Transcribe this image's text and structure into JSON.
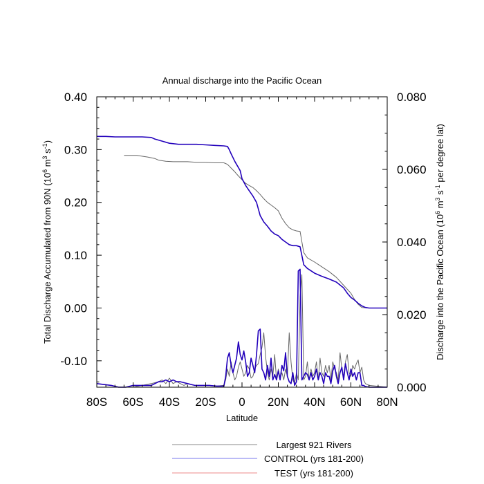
{
  "chart_data": {
    "type": "line",
    "title": "Annual discharge into the Pacific Ocean",
    "xlabel": "Latitude",
    "ylabel_left": {
      "prefix": "Total Discharge Accumulated from 90N (10",
      "sup1": "6",
      "mid": " m",
      "sup2": "3",
      "mid2": " s",
      "sup3": "-1",
      "suffix": ")"
    },
    "ylabel_right": {
      "prefix": "Discharge into the Pacific Ocean (10",
      "sup1": "6",
      "mid": " m",
      "sup2": "3",
      "mid2": " s",
      "sup3": "-1",
      "suffix": " per degree lat)"
    },
    "xlim": [
      -80,
      80
    ],
    "ylim_left": [
      -0.15,
      0.4
    ],
    "ylim_right": [
      0.0,
      0.08
    ],
    "x_ticks": [
      {
        "value": -80,
        "label": "80S"
      },
      {
        "value": -60,
        "label": "60S"
      },
      {
        "value": -40,
        "label": "40S"
      },
      {
        "value": -20,
        "label": "20S"
      },
      {
        "value": 0,
        "label": "0"
      },
      {
        "value": 20,
        "label": "20N"
      },
      {
        "value": 40,
        "label": "40N"
      },
      {
        "value": 60,
        "label": "60N"
      },
      {
        "value": 80,
        "label": "80N"
      }
    ],
    "y_ticks_left": [
      {
        "value": 0.4,
        "label": "0.40"
      },
      {
        "value": 0.3,
        "label": "0.30"
      },
      {
        "value": 0.2,
        "label": "0.20"
      },
      {
        "value": 0.1,
        "label": "0.10"
      },
      {
        "value": 0.0,
        "label": "0.00"
      },
      {
        "value": -0.1,
        "label": "-0.10"
      }
    ],
    "y_ticks_right": [
      {
        "value": 0.08,
        "label": "0.080"
      },
      {
        "value": 0.06,
        "label": "0.060"
      },
      {
        "value": 0.04,
        "label": "0.040"
      },
      {
        "value": 0.02,
        "label": "0.020"
      },
      {
        "value": 0.0,
        "label": "0.000"
      }
    ],
    "series": [
      {
        "name": "Largest 921 Rivers",
        "color": "#666666",
        "accumulated": {
          "x": [
            -65,
            -58,
            -52,
            -48,
            -46,
            -42,
            -38,
            -30,
            -25,
            -20,
            -15,
            -10,
            -8,
            -6,
            -4,
            -2,
            0,
            2,
            4,
            6,
            8,
            10,
            12,
            14,
            16,
            18,
            20,
            22,
            24,
            26,
            28,
            30,
            32,
            34,
            36,
            40,
            44,
            48,
            52,
            56,
            60,
            62,
            64,
            66,
            70,
            75,
            80
          ],
          "y": [
            0.289,
            0.289,
            0.286,
            0.283,
            0.28,
            0.278,
            0.277,
            0.277,
            0.276,
            0.276,
            0.275,
            0.275,
            0.272,
            0.265,
            0.258,
            0.25,
            0.243,
            0.236,
            0.232,
            0.228,
            0.222,
            0.215,
            0.207,
            0.2,
            0.195,
            0.19,
            0.184,
            0.17,
            0.16,
            0.152,
            0.148,
            0.146,
            0.145,
            0.105,
            0.095,
            0.087,
            0.078,
            0.069,
            0.058,
            0.043,
            0.028,
            0.016,
            0.007,
            0.001,
            0.0,
            0.0,
            0.0
          ]
        },
        "per_lat": {
          "x": [
            -80,
            -70,
            -60,
            -55,
            -50,
            -46,
            -44,
            -42,
            -40,
            -38,
            -36,
            -32,
            -30,
            -26,
            -22,
            -18,
            -14,
            -10,
            -9,
            -8,
            -7,
            -6,
            -5,
            -4,
            -3,
            -2,
            -1,
            0,
            1,
            2,
            3,
            4,
            5,
            6,
            7,
            8,
            9,
            10,
            11,
            12,
            13,
            14,
            15,
            16,
            17,
            18,
            19,
            20,
            21,
            22,
            23,
            24,
            25,
            26,
            27,
            28,
            29,
            30,
            31,
            32,
            33,
            34,
            35,
            36,
            37,
            38,
            39,
            40,
            41,
            42,
            43,
            44,
            45,
            46,
            47,
            48,
            49,
            50,
            51,
            52,
            53,
            54,
            55,
            56,
            57,
            58,
            59,
            60,
            61,
            62,
            63,
            64,
            65,
            66,
            67,
            68,
            70,
            80
          ],
          "y": [
            0.0,
            0.0,
            0.0,
            0.0005,
            0.001,
            0.0015,
            0.002,
            0.001,
            0.0025,
            0.001,
            0.0015,
            0.0005,
            0.001,
            0.0005,
            0.0005,
            0.0005,
            0.0003,
            0.0005,
            0.002,
            0.005,
            0.003,
            0.007,
            0.004,
            0.002,
            0.003,
            0.0055,
            0.007,
            0.005,
            0.003,
            0.004,
            0.006,
            0.005,
            0.0025,
            0.003,
            0.005,
            0.006,
            0.0065,
            0.009,
            0.011,
            0.015,
            0.0085,
            0.004,
            0.002,
            0.005,
            0.003,
            0.009,
            0.002,
            0.005,
            0.0025,
            0.004,
            0.002,
            0.005,
            0.003,
            0.015,
            0.007,
            0.002,
            0.001,
            0.004,
            0.002,
            0.025,
            0.031,
            0.002,
            0.003,
            0.007,
            0.002,
            0.005,
            0.003,
            0.004,
            0.007,
            0.002,
            0.008,
            0.004,
            0.003,
            0.006,
            0.004,
            0.006,
            0.002,
            0.007,
            0.005,
            0.004,
            0.002,
            0.0095,
            0.005,
            0.003,
            0.007,
            0.009,
            0.004,
            0.003,
            0.006,
            0.005,
            0.0065,
            0.0075,
            0.004,
            0.0055,
            0.002,
            0.001,
            0.0005,
            0.0
          ]
        }
      },
      {
        "name": "CONTROL (yrs 181-200)",
        "color": "#2200bb",
        "accumulated": {
          "x": [
            -80,
            -75,
            -70,
            -65,
            -60,
            -55,
            -50,
            -48,
            -45,
            -40,
            -35,
            -30,
            -25,
            -20,
            -15,
            -10,
            -8,
            -7,
            -6,
            -5,
            -4,
            -3,
            -2,
            -1,
            0,
            2,
            4,
            6,
            8,
            10,
            12,
            14,
            16,
            18,
            20,
            22,
            24,
            26,
            28,
            30,
            32,
            34,
            36,
            40,
            44,
            48,
            52,
            56,
            58,
            60,
            62,
            64,
            66,
            68,
            70,
            75,
            80
          ],
          "y": [
            0.325,
            0.325,
            0.324,
            0.324,
            0.324,
            0.324,
            0.323,
            0.32,
            0.317,
            0.312,
            0.31,
            0.31,
            0.31,
            0.309,
            0.308,
            0.307,
            0.306,
            0.3,
            0.292,
            0.285,
            0.278,
            0.272,
            0.266,
            0.26,
            0.245,
            0.232,
            0.222,
            0.212,
            0.2,
            0.175,
            0.163,
            0.155,
            0.146,
            0.14,
            0.137,
            0.13,
            0.125,
            0.12,
            0.118,
            0.118,
            0.116,
            0.082,
            0.075,
            0.066,
            0.06,
            0.055,
            0.049,
            0.038,
            0.028,
            0.02,
            0.015,
            0.009,
            0.004,
            0.001,
            0.0,
            0.0,
            0.0
          ]
        },
        "per_lat": {
          "x": [
            -80,
            -72,
            -68,
            -64,
            -60,
            -56,
            -52,
            -50,
            -48,
            -46,
            -44,
            -42,
            -40,
            -38,
            -36,
            -34,
            -30,
            -26,
            -22,
            -18,
            -14,
            -10,
            -9,
            -8,
            -7,
            -6,
            -5,
            -4,
            -3,
            -2,
            -1,
            0,
            1,
            2,
            3,
            4,
            5,
            6,
            7,
            8,
            9,
            10,
            11,
            12,
            13,
            14,
            15,
            16,
            17,
            18,
            19,
            20,
            21,
            22,
            23,
            24,
            25,
            26,
            27,
            28,
            29,
            30,
            31,
            32,
            33,
            34,
            35,
            36,
            37,
            38,
            39,
            40,
            41,
            42,
            43,
            44,
            45,
            46,
            47,
            48,
            49,
            50,
            51,
            52,
            53,
            54,
            55,
            56,
            57,
            58,
            59,
            60,
            61,
            62,
            63,
            64,
            65,
            66,
            67,
            68,
            70,
            80
          ],
          "y": [
            0.001,
            0.0005,
            0.0,
            0.0,
            0.0005,
            0.0005,
            0.0005,
            0.0005,
            0.001,
            0.0015,
            0.0015,
            0.002,
            0.0015,
            0.002,
            0.0015,
            0.0015,
            0.001,
            0.0005,
            0.0005,
            0.0005,
            0.0003,
            0.0003,
            0.003,
            0.008,
            0.0095,
            0.006,
            0.004,
            0.006,
            0.008,
            0.0125,
            0.009,
            0.0075,
            0.01,
            0.007,
            0.003,
            0.004,
            0.008,
            0.006,
            0.004,
            0.009,
            0.0155,
            0.016,
            0.005,
            0.004,
            0.002,
            0.006,
            0.003,
            0.008,
            0.002,
            0.0035,
            0.002,
            0.0045,
            0.002,
            0.006,
            0.0045,
            0.0095,
            0.003,
            0.0015,
            0.001,
            0.004,
            0.0005,
            0.0015,
            0.032,
            0.0325,
            0.002,
            0.003,
            0.004,
            0.0035,
            0.002,
            0.004,
            0.002,
            0.003,
            0.005,
            0.002,
            0.004,
            0.003,
            0.001,
            0.004,
            0.003,
            0.003,
            0.001,
            0.0045,
            0.006,
            0.003,
            0.001,
            0.004,
            0.0055,
            0.002,
            0.0065,
            0.004,
            0.002,
            0.005,
            0.003,
            0.004,
            0.002,
            0.004,
            0.004,
            0.0005,
            0.0005,
            0.0002,
            0.0,
            0.0
          ]
        }
      },
      {
        "name": "TEST (yrs 181-200)",
        "color": "#ee7777"
      }
    ]
  },
  "legend": [
    {
      "label": "Largest 921 Rivers",
      "color": "#888888"
    },
    {
      "label": "CONTROL (yrs 181-200)",
      "color": "#7777ee"
    },
    {
      "label": "TEST (yrs 181-200)",
      "color": "#ee8888"
    }
  ]
}
